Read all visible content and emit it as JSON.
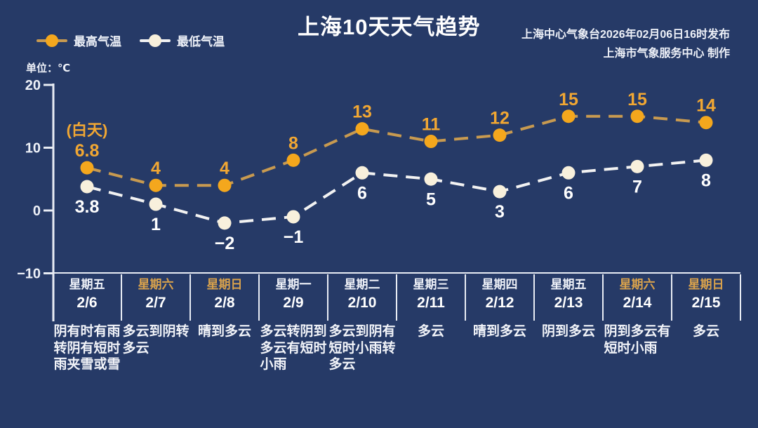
{
  "page": {
    "background": "#263a67"
  },
  "header": {
    "title": "上海10天天气趋势",
    "attribution_line1": "上海中心气象台2026年02月06日16时发布",
    "attribution_line2": "上海市气象服务中心  制作"
  },
  "legend": {
    "high_label": "最高气温",
    "low_label": "最低气温"
  },
  "unit_label": "单位：℃",
  "daytime_label": "(白天)",
  "colors": {
    "high_marker": "#f4a71d",
    "high_line": "#c89a50",
    "high_text": "#f1a733",
    "low_marker": "#f8f0dc",
    "low_line": "#f2f2f2",
    "low_text": "#ffffff",
    "axis": "#e8ecf4",
    "weekend_text": "#d9a24c",
    "weekday_text": "#eef1f8"
  },
  "chart_data": {
    "type": "line",
    "title": "上海10天天气趋势",
    "ylabel": "单位：℃",
    "y_ticks": [
      20,
      10,
      0,
      -10
    ],
    "ylim": [
      -13,
      20
    ],
    "grid": false,
    "legend_position": "top-left",
    "categories_week": [
      "星期五",
      "星期六",
      "星期日",
      "星期一",
      "星期二",
      "星期三",
      "星期四",
      "星期五",
      "星期六",
      "星期日"
    ],
    "categories_date": [
      "2/6",
      "2/7",
      "2/8",
      "2/9",
      "2/10",
      "2/11",
      "2/12",
      "2/13",
      "2/14",
      "2/15"
    ],
    "weekend": [
      false,
      true,
      true,
      false,
      false,
      false,
      false,
      false,
      true,
      true
    ],
    "series": [
      {
        "name": "最高气温",
        "values": [
          6.8,
          4,
          4,
          8,
          13,
          11,
          12,
          15,
          15,
          14
        ]
      },
      {
        "name": "最低气温",
        "values": [
          3.8,
          1,
          -2,
          -1,
          6,
          5,
          3,
          6,
          7,
          8
        ]
      }
    ],
    "weather": [
      "阴有时有雨\n转阴有短时\n雨夹雪或雪",
      "多云到阴转\n多云",
      "晴到多云",
      "多云转阴到\n多云有短时\n小雨",
      "多云到阴有\n短时小雨转\n多云",
      "多云",
      "晴到多云",
      "阴到多云",
      "阴到多云有\n短时小雨",
      "多云"
    ]
  }
}
